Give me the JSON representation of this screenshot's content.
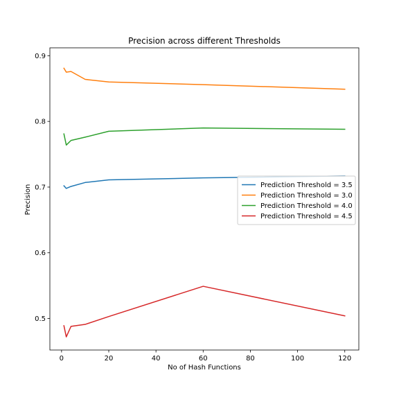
{
  "chart_data": {
    "type": "line",
    "title": "Precision across different Thresholds",
    "xlabel": "No of Hash Functions",
    "ylabel": "Precision",
    "xlim": [
      -4.95,
      125.95
    ],
    "ylim": [
      0.452,
      0.912
    ],
    "xticks": [
      0,
      20,
      40,
      60,
      80,
      100,
      120
    ],
    "yticks": [
      0.5,
      0.6,
      0.7,
      0.8,
      0.9
    ],
    "xtick_labels": [
      "0",
      "20",
      "40",
      "60",
      "80",
      "100",
      "120"
    ],
    "ytick_labels": [
      "0.5",
      "0.6",
      "0.7",
      "0.8",
      "0.9"
    ],
    "grid": false,
    "legend_position": "center-right",
    "x": [
      1,
      2,
      4,
      10,
      20,
      60,
      120
    ],
    "series": [
      {
        "name": "Prediction Threshold = 3.5",
        "color": "#1f77b4",
        "values": [
          0.702,
          0.698,
          0.701,
          0.707,
          0.711,
          0.714,
          0.717
        ]
      },
      {
        "name": "Prediction Threshold = 3.0",
        "color": "#ff7f0e",
        "values": [
          0.881,
          0.875,
          0.876,
          0.864,
          0.86,
          0.856,
          0.849
        ]
      },
      {
        "name": "Prediction Threshold = 4.0",
        "color": "#2ca02c",
        "values": [
          0.781,
          0.764,
          0.771,
          0.776,
          0.785,
          0.79,
          0.788
        ]
      },
      {
        "name": "Prediction Threshold = 4.5",
        "color": "#d62728",
        "values": [
          0.489,
          0.472,
          0.488,
          0.491,
          0.503,
          0.549,
          0.504
        ]
      }
    ]
  }
}
